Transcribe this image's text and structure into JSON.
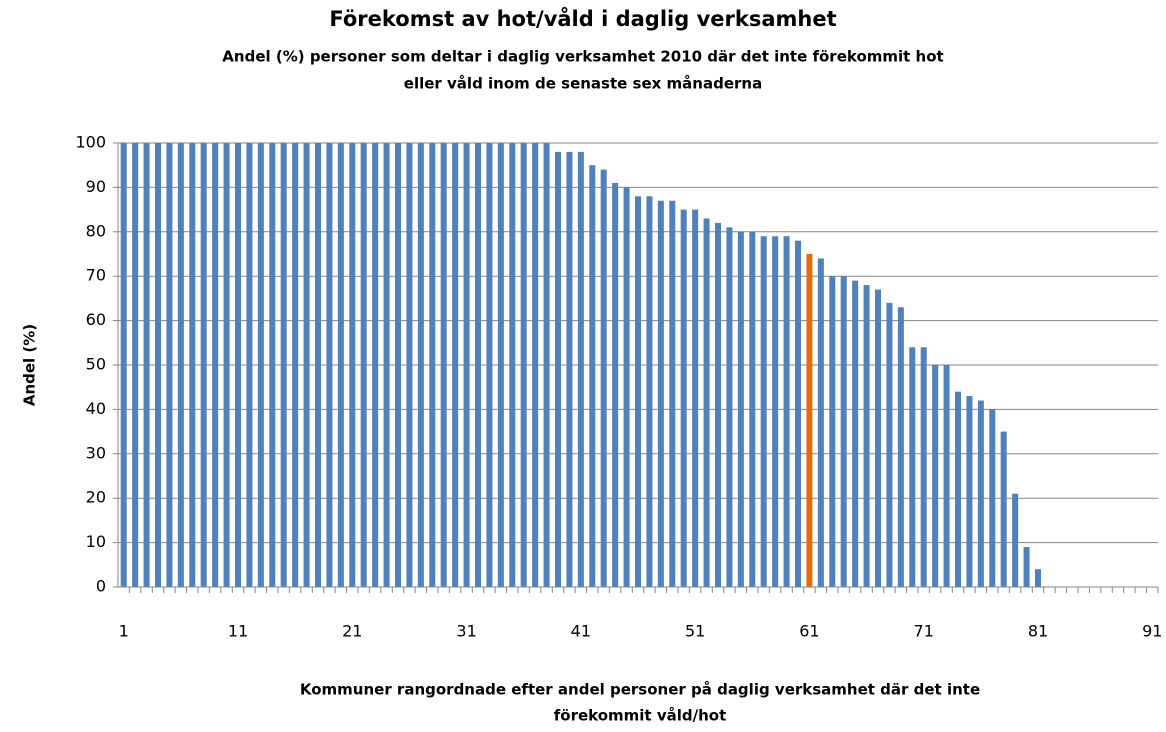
{
  "chart_data": {
    "type": "bar",
    "title": "Förekomst av hot/våld i daglig verksamhet",
    "subtitle": [
      "Andel (%) personer som deltar i daglig verksamhet 2010 där det inte förekommit hot",
      "eller våld inom de senaste sex månaderna"
    ],
    "y_label": "Andel (%)",
    "x_label": [
      "Kommuner rangordnade efter andel personer på daglig verksamhet där det inte",
      "förekommit våld/hot"
    ],
    "categories": [
      "1",
      null,
      null,
      null,
      null,
      null,
      null,
      null,
      null,
      null,
      "11",
      null,
      null,
      null,
      null,
      null,
      null,
      null,
      null,
      null,
      "21",
      null,
      null,
      null,
      null,
      null,
      null,
      null,
      null,
      null,
      "31",
      null,
      null,
      null,
      null,
      null,
      null,
      null,
      null,
      null,
      "41",
      null,
      null,
      null,
      null,
      null,
      null,
      null,
      null,
      null,
      "51",
      null,
      null,
      null,
      null,
      null,
      null,
      null,
      null,
      null,
      "61",
      null,
      null,
      null,
      null,
      null,
      null,
      null,
      null,
      null,
      "71",
      null,
      null,
      null,
      null,
      null,
      null,
      null,
      null,
      null,
      "81",
      null,
      null,
      null,
      null,
      null,
      null,
      null,
      null,
      null,
      "91"
    ],
    "values": [
      100,
      100,
      100,
      100,
      100,
      100,
      100,
      100,
      100,
      100,
      100,
      100,
      100,
      100,
      100,
      100,
      100,
      100,
      100,
      100,
      100,
      100,
      100,
      100,
      100,
      100,
      100,
      100,
      100,
      100,
      100,
      100,
      100,
      100,
      100,
      100,
      100,
      100,
      98,
      98,
      98,
      95,
      94,
      91,
      90,
      88,
      88,
      87,
      87,
      85,
      85,
      83,
      82,
      81,
      80,
      80,
      79,
      79,
      79,
      78,
      75,
      74,
      70,
      70,
      69,
      68,
      67,
      64,
      63,
      54,
      54,
      50,
      50,
      44,
      43,
      42,
      40,
      35,
      21,
      9,
      4,
      null,
      null,
      null,
      null,
      null,
      null,
      null,
      null,
      null,
      null
    ],
    "colors": [
      "#4f81bd",
      "#4f81bd",
      "#4f81bd",
      "#4f81bd",
      "#4f81bd",
      "#4f81bd",
      "#4f81bd",
      "#4f81bd",
      "#4f81bd",
      "#4f81bd",
      "#4f81bd",
      "#4f81bd",
      "#4f81bd",
      "#4f81bd",
      "#4f81bd",
      "#4f81bd",
      "#4f81bd",
      "#4f81bd",
      "#4f81bd",
      "#4f81bd",
      "#4f81bd",
      "#4f81bd",
      "#4f81bd",
      "#4f81bd",
      "#4f81bd",
      "#4f81bd",
      "#4f81bd",
      "#4f81bd",
      "#4f81bd",
      "#4f81bd",
      "#4f81bd",
      "#4f81bd",
      "#4f81bd",
      "#4f81bd",
      "#4f81bd",
      "#4f81bd",
      "#4f81bd",
      "#4f81bd",
      "#4f81bd",
      "#4f81bd",
      "#4f81bd",
      "#4f81bd",
      "#4f81bd",
      "#4f81bd",
      "#4f81bd",
      "#4f81bd",
      "#4f81bd",
      "#4f81bd",
      "#4f81bd",
      "#4f81bd",
      "#4f81bd",
      "#4f81bd",
      "#4f81bd",
      "#4f81bd",
      "#4f81bd",
      "#4f81bd",
      "#4f81bd",
      "#4f81bd",
      "#4f81bd",
      "#4f81bd",
      "#e36c0a",
      "#4f81bd",
      "#4f81bd",
      "#4f81bd",
      "#4f81bd",
      "#4f81bd",
      "#4f81bd",
      "#4f81bd",
      "#4f81bd",
      "#4f81bd",
      "#4f81bd",
      "#4f81bd",
      "#4f81bd",
      "#4f81bd",
      "#4f81bd",
      "#4f81bd",
      "#4f81bd",
      "#4f81bd",
      "#4f81bd",
      "#4f81bd",
      "#4f81bd",
      "#4f81bd",
      "#4f81bd",
      "#4f81bd",
      "#4f81bd",
      "#4f81bd",
      "#4f81bd",
      "#4f81bd",
      "#4f81bd",
      "#4f81bd",
      "#4f81bd"
    ],
    "ylim": [
      0,
      100
    ],
    "yticks": [
      0,
      10,
      20,
      30,
      40,
      50,
      60,
      70,
      80,
      90,
      100
    ],
    "grid": true
  }
}
